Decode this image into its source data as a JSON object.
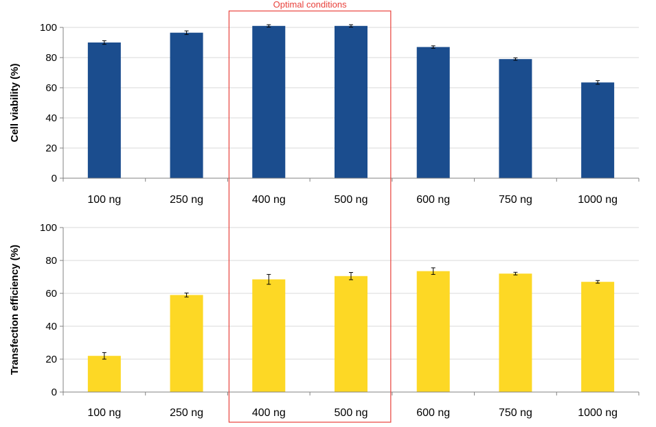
{
  "chart_data": [
    {
      "type": "bar",
      "categories": [
        "100 ng",
        "250 ng",
        "400 ng",
        "500 ng",
        "600 ng",
        "750 ng",
        "1000 ng"
      ],
      "values": [
        90,
        96.5,
        101,
        101,
        87,
        79,
        63.5
      ],
      "errors": [
        1.2,
        1.2,
        0.8,
        0.8,
        0.8,
        0.8,
        1.2
      ],
      "ylabel": "Cell viability (%)",
      "xlabel": "",
      "ylim": [
        0,
        100
      ],
      "yticks": [
        0,
        20,
        40,
        60,
        80,
        100
      ],
      "color": "#1b4d8e"
    },
    {
      "type": "bar",
      "categories": [
        "100 ng",
        "250 ng",
        "400 ng",
        "500 ng",
        "600 ng",
        "750 ng",
        "1000 ng"
      ],
      "values": [
        22,
        59,
        68.5,
        70.5,
        73.5,
        72,
        67
      ],
      "errors": [
        2,
        1.2,
        3,
        2.2,
        2,
        0.8,
        0.8
      ],
      "ylabel": "Transfection efficiency (%)",
      "xlabel": "",
      "ylim": [
        0,
        100
      ],
      "yticks": [
        0,
        20,
        40,
        60,
        80,
        100
      ],
      "color": "#fdd825"
    }
  ],
  "annotation": {
    "label": "Optimal conditions",
    "categories": [
      "400 ng",
      "500 ng"
    ],
    "color": "#e8403a"
  }
}
